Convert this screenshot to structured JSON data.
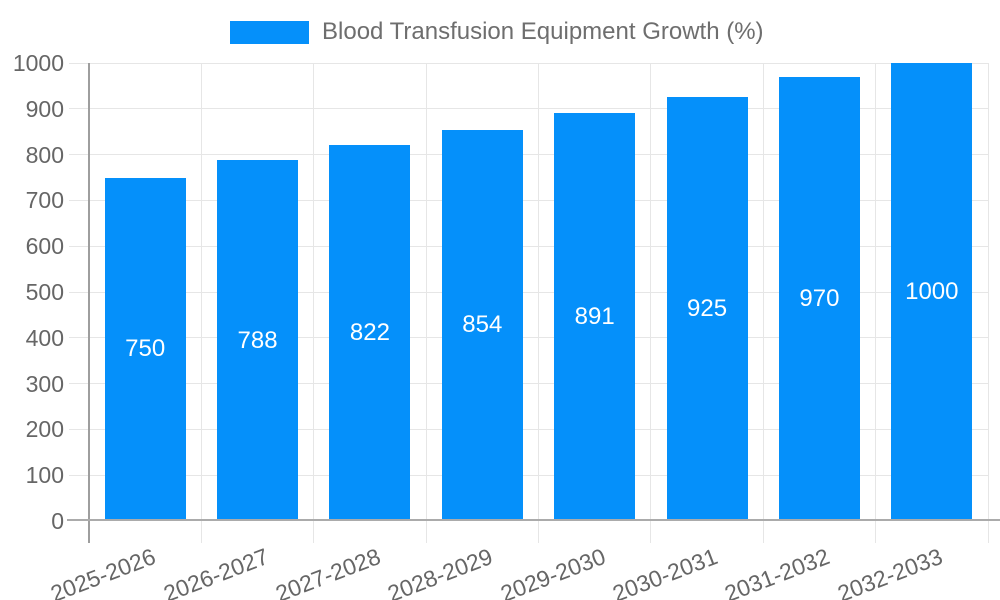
{
  "chart_data": {
    "type": "bar",
    "title": "Blood Transfusion Equipment Growth (%)",
    "categories": [
      "2025-2026",
      "2026-2027",
      "2027-2028",
      "2028-2029",
      "2029-2030",
      "2030-2031",
      "2031-2032",
      "2032-2033"
    ],
    "values": [
      750,
      788,
      822,
      854,
      891,
      925,
      970,
      1000
    ],
    "xlabel": "",
    "ylabel": "",
    "ylim": [
      0,
      1000
    ],
    "ytick_step": 100,
    "ytick_labels": [
      "0",
      "100",
      "200",
      "300",
      "400",
      "500",
      "600",
      "700",
      "800",
      "900",
      "1000"
    ],
    "grid": true,
    "legend_position": "top",
    "colors": {
      "bar": "#0590FA",
      "value_label": "#ffffff",
      "grid": "#e6e6e6",
      "axis": "#9e9e9e",
      "tick_label": "#666666",
      "legend_text": "#6e6e6e"
    }
  }
}
